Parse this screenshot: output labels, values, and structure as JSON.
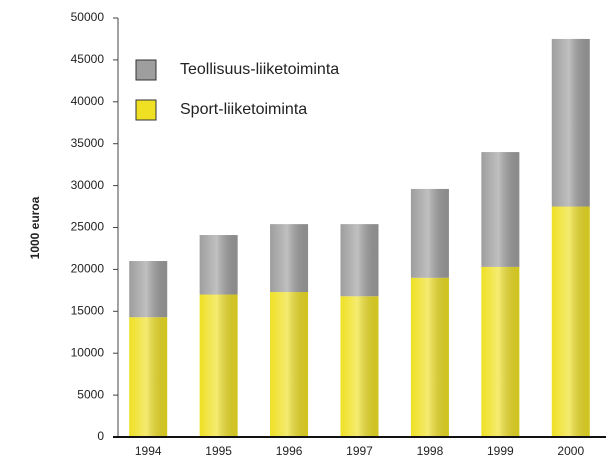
{
  "chart_data": {
    "type": "stacked_bar",
    "y_label": "1000 euroa",
    "categories": [
      "1994",
      "1995",
      "1996",
      "1997",
      "1998",
      "1999",
      "2000"
    ],
    "series": [
      {
        "name": "Sport-liiketoiminta",
        "color": "#efe024",
        "values": [
          14300,
          17000,
          17300,
          16800,
          19000,
          20300,
          27500
        ]
      },
      {
        "name": "Teollisuus-liiketoiminta",
        "color": "#9e9e9e",
        "values": [
          6700,
          7100,
          8100,
          8600,
          10600,
          13700,
          20000
        ]
      }
    ],
    "ylim": [
      0,
      50000
    ],
    "yticks": [
      0,
      5000,
      10000,
      15000,
      20000,
      25000,
      30000,
      35000,
      40000,
      45000,
      50000
    ],
    "legend": "upper left"
  }
}
